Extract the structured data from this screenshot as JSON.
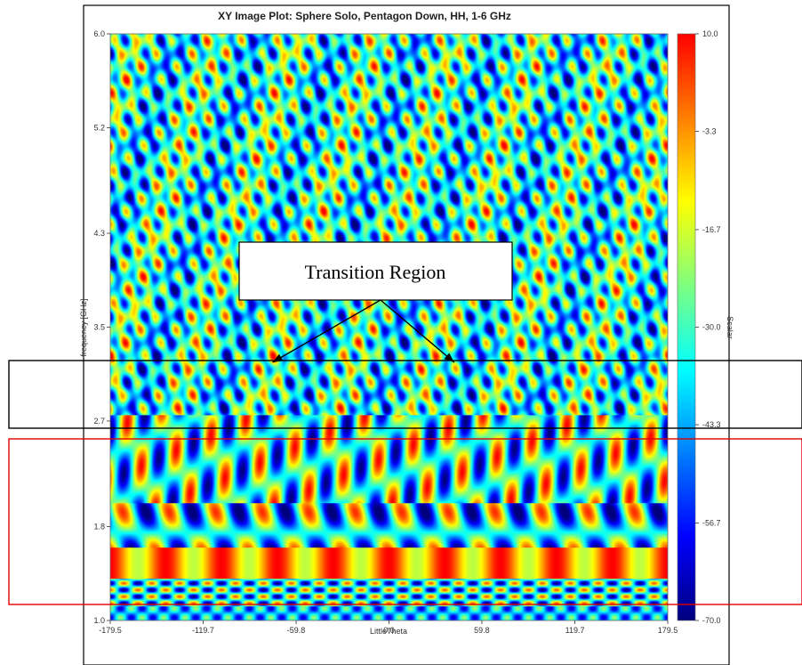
{
  "chart_data": {
    "type": "heatmap",
    "title": "XY Image Plot: Sphere Solo, Pentagon Down, HH, 1-6 GHz",
    "xlabel": "LittleTheta",
    "ylabel": "frequency [GHz]",
    "colorbar_label": "Scalar",
    "xlim": [
      -179.5,
      179.5
    ],
    "ylim": [
      1.0,
      6.0
    ],
    "x_ticks": [
      "-179.5",
      "-119.7",
      "-59.8",
      "0.0",
      "59.8",
      "119.7",
      "179.5"
    ],
    "y_ticks": [
      "1.0",
      "1.8",
      "2.7",
      "3.5",
      "4.3",
      "5.2",
      "6.0"
    ],
    "colorbar_range": [
      -70.0,
      10.0
    ],
    "colorbar_ticks": [
      "10.0",
      "-3.3",
      "-16.7",
      "-30.0",
      "-43.3",
      "-56.7",
      "-70.0"
    ],
    "colormap": [
      "#00007f",
      "#0000ff",
      "#007fff",
      "#00ffff",
      "#7fff7f",
      "#ffff00",
      "#ff7f00",
      "#ff0000"
    ],
    "annotations": [
      {
        "text": "Transition Region",
        "points_to": [
          [
            -75,
            3.2
          ],
          [
            42,
            3.2
          ]
        ]
      }
    ],
    "highlight_bands": [
      {
        "name": "transition",
        "ylim": [
          2.8,
          3.25
        ],
        "color": "#000000"
      },
      {
        "name": "lower",
        "ylim": [
          1.15,
          2.75
        ],
        "color": "#ff0000"
      }
    ]
  }
}
